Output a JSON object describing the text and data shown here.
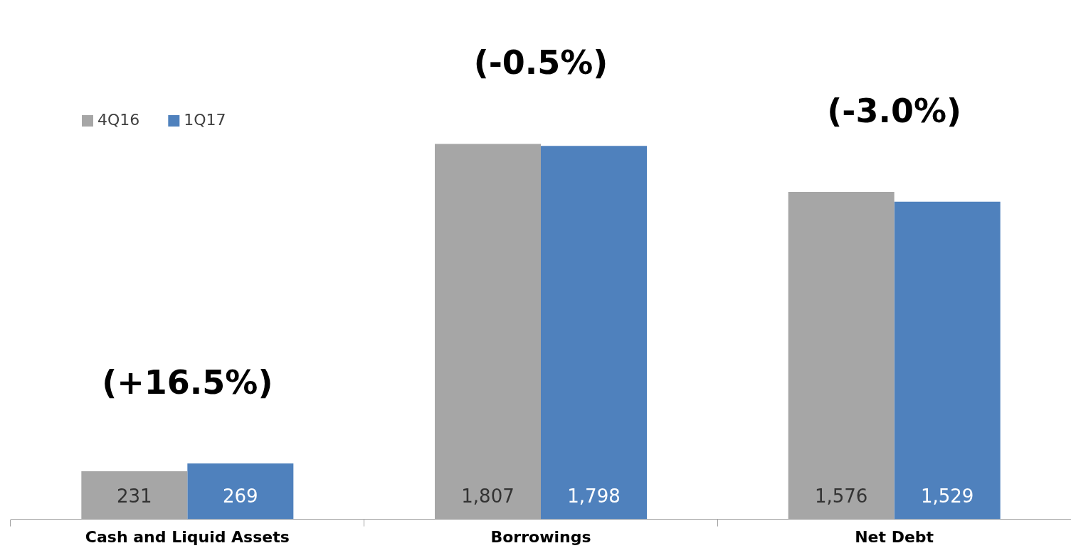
{
  "chart_data": {
    "type": "bar",
    "categories": [
      "Cash and Liquid Assets",
      "Borrowings",
      "Net Debt"
    ],
    "series": [
      {
        "name": "4Q16",
        "color": "#a6a6a6",
        "values": [
          231,
          1807,
          1576
        ],
        "value_labels": [
          "231",
          "1,807",
          "1,576"
        ]
      },
      {
        "name": "1Q17",
        "color": "#4f81bd",
        "values": [
          269,
          1798,
          1529
        ],
        "value_labels": [
          "269",
          "1,798",
          "1,529"
        ]
      }
    ],
    "legend": "top left",
    "annotations": [
      "(+16.5%)",
      "(-0.5%)",
      "(-3.0%)"
    ]
  }
}
